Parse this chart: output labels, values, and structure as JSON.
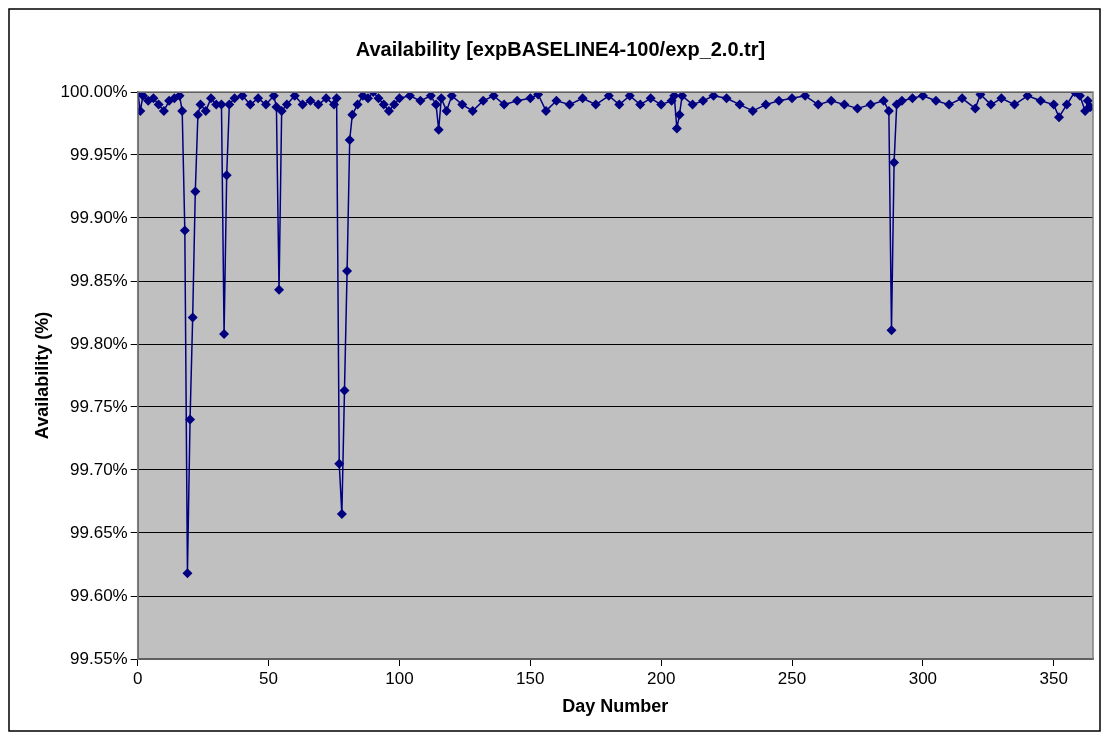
{
  "chart_data": {
    "type": "line",
    "title": "Availability [expBASELINE4-100/exp_2.0.tr]",
    "xlabel": "Day Number",
    "ylabel": "Availability (%)",
    "series": [
      {
        "color": "#000080",
        "x": [
          0,
          1,
          2,
          4,
          6,
          8,
          10,
          12,
          14,
          16,
          17,
          18,
          19,
          20,
          21,
          22,
          23,
          24,
          26,
          28,
          30,
          32,
          33,
          34,
          35,
          37,
          40,
          43,
          46,
          49,
          52,
          53,
          54,
          55,
          57,
          60,
          63,
          66,
          69,
          72,
          75,
          76,
          77,
          78,
          79,
          80,
          81,
          82,
          84,
          86,
          88,
          90,
          92,
          94,
          96,
          98,
          100,
          104,
          108,
          112,
          114,
          115,
          116,
          118,
          120,
          124,
          128,
          132,
          136,
          140,
          145,
          150,
          153,
          156,
          160,
          165,
          170,
          175,
          180,
          184,
          188,
          192,
          196,
          200,
          204,
          205,
          206,
          207,
          208,
          212,
          216,
          220,
          225,
          230,
          235,
          240,
          245,
          250,
          255,
          260,
          265,
          270,
          275,
          280,
          285,
          287,
          288,
          289,
          290,
          292,
          296,
          300,
          305,
          310,
          315,
          320,
          322,
          326,
          330,
          335,
          340,
          345,
          350,
          352,
          355,
          358,
          360,
          362,
          363,
          364
        ],
        "values": [
          100.0,
          99.985,
          99.997,
          99.993,
          99.995,
          99.99,
          99.985,
          99.993,
          99.995,
          99.997,
          99.985,
          99.89,
          99.618,
          99.74,
          99.821,
          99.921,
          99.982,
          99.99,
          99.985,
          99.995,
          99.99,
          99.99,
          99.808,
          99.934,
          99.99,
          99.995,
          99.997,
          99.99,
          99.995,
          99.99,
          99.997,
          99.988,
          99.843,
          99.985,
          99.99,
          99.997,
          99.99,
          99.993,
          99.99,
          99.995,
          99.99,
          99.995,
          99.705,
          99.665,
          99.763,
          99.858,
          99.962,
          99.982,
          99.99,
          99.997,
          99.995,
          100.0,
          99.995,
          99.99,
          99.985,
          99.99,
          99.995,
          99.997,
          99.993,
          99.997,
          99.99,
          99.97,
          99.995,
          99.985,
          99.997,
          99.99,
          99.985,
          99.993,
          99.997,
          99.99,
          99.993,
          99.995,
          99.998,
          99.985,
          99.993,
          99.99,
          99.995,
          99.99,
          99.997,
          99.99,
          99.997,
          99.99,
          99.995,
          99.99,
          99.993,
          99.997,
          99.971,
          99.982,
          99.997,
          99.99,
          99.993,
          99.997,
          99.995,
          99.99,
          99.985,
          99.99,
          99.993,
          99.995,
          99.997,
          99.99,
          99.993,
          99.99,
          99.987,
          99.99,
          99.993,
          99.985,
          99.811,
          99.944,
          99.99,
          99.993,
          99.995,
          99.997,
          99.993,
          99.99,
          99.995,
          99.987,
          99.998,
          99.99,
          99.995,
          99.99,
          99.997,
          99.993,
          99.99,
          99.98,
          99.99,
          100.0,
          99.997,
          99.985,
          99.993,
          99.988
        ]
      }
    ],
    "xlim": [
      0,
      365
    ],
    "xticks": [
      0,
      50,
      100,
      150,
      200,
      250,
      300,
      350
    ],
    "ylim": [
      99.55,
      100.0
    ],
    "yticks": [
      {
        "value": 99.55,
        "label": "99.55%"
      },
      {
        "value": 99.6,
        "label": "99.60%"
      },
      {
        "value": 99.65,
        "label": "99.65%"
      },
      {
        "value": 99.7,
        "label": "99.70%"
      },
      {
        "value": 99.75,
        "label": "99.75%"
      },
      {
        "value": 99.8,
        "label": "99.80%"
      },
      {
        "value": 99.85,
        "label": "99.85%"
      },
      {
        "value": 99.9,
        "label": "99.90%"
      },
      {
        "value": 99.95,
        "label": "99.95%"
      },
      {
        "value": 100.0,
        "label": "100.00%"
      }
    ],
    "grid": "y",
    "legend": false,
    "marker": "diamond",
    "line_style": "solid"
  }
}
